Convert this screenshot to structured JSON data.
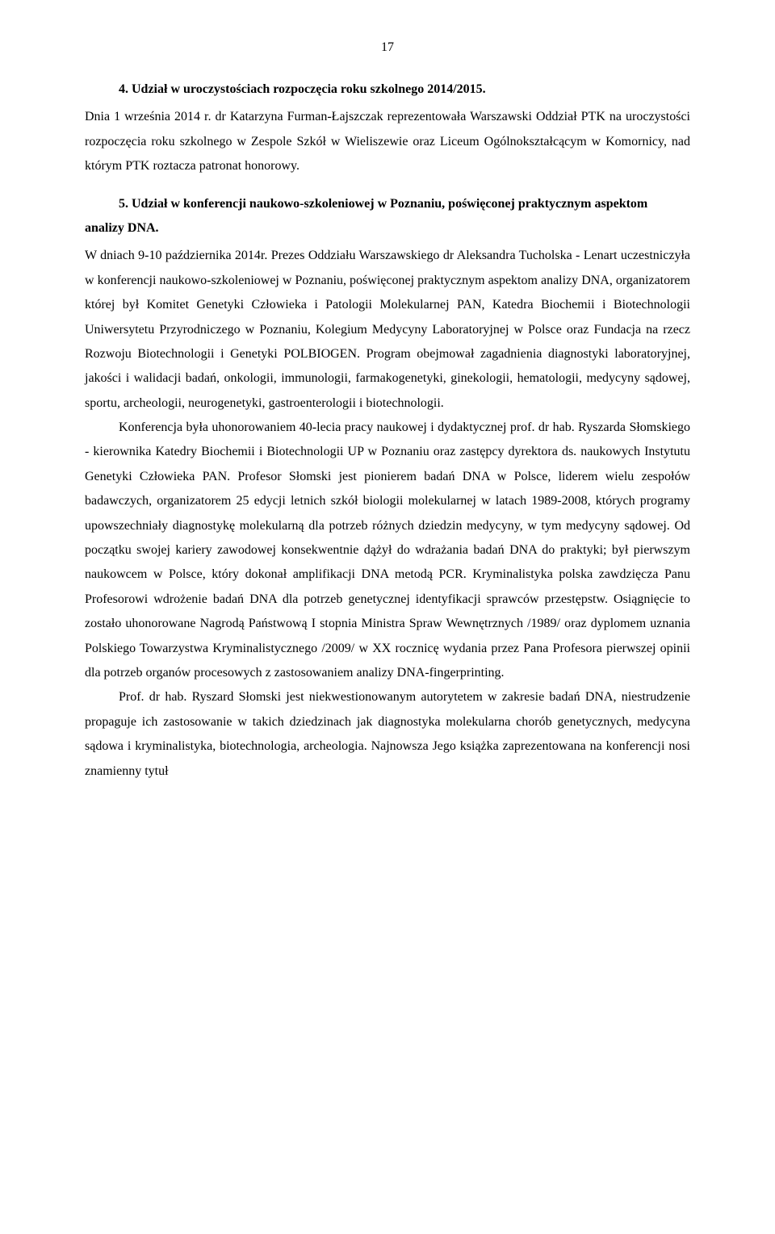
{
  "page_number": "17",
  "section4": {
    "heading": "4. Udział w uroczystościach rozpoczęcia roku szkolnego 2014/2015.",
    "body": "Dnia 1 września 2014 r. dr Katarzyna Furman-Łajszczak reprezentowała Warszawski Oddział PTK na uroczystości rozpoczęcia roku szkolnego w Zespole Szkół w Wieliszewie oraz Liceum Ogólnokształcącym w Komornicy, nad którym PTK roztacza patronat honorowy."
  },
  "section5": {
    "heading": "5. Udział w konferencji naukowo-szkoleniowej w Poznaniu, poświęconej praktycznym aspektom analizy DNA.",
    "para1": "W dniach 9-10 października 2014r. Prezes Oddziału Warszawskiego dr Aleksandra Tucholska - Lenart uczestniczyła w konferencji naukowo-szkoleniowej w Poznaniu, poświęconej praktycznym aspektom analizy DNA, organizatorem której był Komitet Genetyki Człowieka i Patologii Molekularnej PAN, Katedra Biochemii i Biotechnologii Uniwersytetu Przyrodniczego w Poznaniu, Kolegium Medycyny Laboratoryjnej w Polsce oraz Fundacja na rzecz Rozwoju Biotechnologii i Genetyki POLBIOGEN. Program obejmował zagadnienia diagnostyki laboratoryjnej, jakości i walidacji badań, onkologii, immunologii, farmakogenetyki, ginekologii, hematologii, medycyny sądowej, sportu, archeologii, neurogenetyki, gastroenterologii i biotechnologii.",
    "para2": "Konferencja była uhonorowaniem 40-lecia pracy naukowej i dydaktycznej prof. dr hab. Ryszarda Słomskiego - kierownika Katedry Biochemii i Biotechnologii UP w Poznaniu oraz zastępcy dyrektora ds. naukowych Instytutu Genetyki Człowieka PAN. Profesor Słomski jest pionierem badań DNA w Polsce, liderem wielu zespołów badawczych, organizatorem 25 edycji letnich szkół biologii molekularnej w latach 1989-2008, których programy upowszechniały diagnostykę molekularną dla potrzeb różnych dziedzin medycyny, w tym medycyny sądowej. Od początku swojej kariery zawodowej konsekwentnie dążył do wdrażania  badań DNA do praktyki; był pierwszym naukowcem w Polsce, który dokonał amplifikacji DNA metodą PCR. Kryminalistyka polska zawdzięcza Panu Profesorowi wdrożenie badań DNA dla potrzeb genetycznej identyfikacji sprawców przestępstw. Osiągnięcie to zostało uhonorowane Nagrodą Państwową I stopnia Ministra Spraw Wewnętrznych /1989/ oraz dyplomem uznania Polskiego Towarzystwa Kryminalistycznego /2009/ w XX rocznicę wydania przez Pana Profesora pierwszej opinii dla potrzeb organów procesowych z zastosowaniem analizy DNA-fingerprinting.",
    "para3": "Prof. dr hab. Ryszard Słomski jest niekwestionowanym autorytetem w zakresie badań DNA, niestrudzenie propaguje ich zastosowanie w takich dziedzinach jak diagnostyka molekularna chorób genetycznych, medycyna sądowa i kryminalistyka, biotechnologia, archeologia. Najnowsza Jego książka zaprezentowana na konferencji nosi znamienny tytuł"
  }
}
